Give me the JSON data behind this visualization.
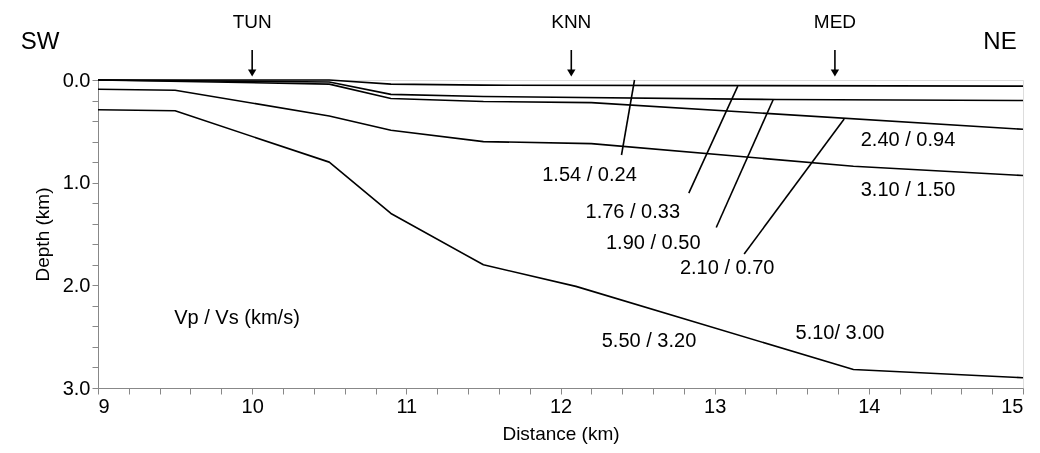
{
  "chart_data": {
    "type": "line",
    "xlabel": "Distance (km)",
    "ylabel": "Depth (km)",
    "xlim": [
      9,
      15
    ],
    "ylim": [
      3,
      0
    ],
    "xticks": [
      9,
      {
        "value": 9.2,
        "label": null
      },
      {
        "value": 9.4,
        "label": null
      },
      {
        "value": 9.6,
        "label": null
      },
      {
        "value": 9.8,
        "label": null
      },
      10,
      {
        "value": 10.2,
        "label": null
      },
      {
        "value": 10.4,
        "label": null
      },
      {
        "value": 10.6,
        "label": null
      },
      {
        "value": 10.8,
        "label": null
      },
      11,
      {
        "value": 11.2,
        "label": null
      },
      {
        "value": 11.4,
        "label": null
      },
      {
        "value": 11.6,
        "label": null
      },
      {
        "value": 11.8,
        "label": null
      },
      12,
      {
        "value": 12.2,
        "label": null
      },
      {
        "value": 12.4,
        "label": null
      },
      {
        "value": 12.6,
        "label": null
      },
      {
        "value": 12.8,
        "label": null
      },
      13,
      {
        "value": 13.2,
        "label": null
      },
      {
        "value": 13.4,
        "label": null
      },
      {
        "value": 13.6,
        "label": null
      },
      {
        "value": 13.8,
        "label": null
      },
      14,
      {
        "value": 14.2,
        "label": null
      },
      {
        "value": 14.4,
        "label": null
      },
      {
        "value": 14.6,
        "label": null
      },
      {
        "value": 14.8,
        "label": null
      },
      15
    ],
    "yticks": [
      {
        "value": 0,
        "label": "0.0"
      },
      {
        "value": 0.2,
        "label": null
      },
      {
        "value": 0.4,
        "label": null
      },
      {
        "value": 0.6,
        "label": null
      },
      {
        "value": 0.8,
        "label": null
      },
      {
        "value": 1,
        "label": "1.0"
      },
      {
        "value": 1.2,
        "label": null
      },
      {
        "value": 1.4,
        "label": null
      },
      {
        "value": 1.6,
        "label": null
      },
      {
        "value": 1.8,
        "label": null
      },
      {
        "value": 2,
        "label": "2.0"
      },
      {
        "value": 2.2,
        "label": null
      },
      {
        "value": 2.4,
        "label": null
      },
      {
        "value": 2.6,
        "label": null
      },
      {
        "value": 2.8,
        "label": null
      },
      {
        "value": 3,
        "label": "3.0"
      }
    ],
    "grid": false,
    "line_style": "solid",
    "marker": "none",
    "series": [
      {
        "color": "#000000",
        "x": [
          9,
          10.5,
          10.9,
          11.5,
          15
        ],
        "values": [
          0,
          0,
          0.04,
          0.05,
          0.06
        ]
      },
      {
        "color": "#000000",
        "x": [
          9,
          10.5,
          10.9,
          11.5,
          13.4,
          15
        ],
        "values": [
          0,
          0.02,
          0.14,
          0.16,
          0.19,
          0.2
        ]
      },
      {
        "color": "#000000",
        "x": [
          9,
          10.5,
          10.9,
          11.5,
          12.2,
          15
        ],
        "values": [
          0,
          0.04,
          0.18,
          0.21,
          0.22,
          0.48
        ]
      },
      {
        "color": "#000000",
        "x": [
          9,
          9.5,
          10.5,
          10.9,
          11.5,
          12.2,
          13.9,
          15
        ],
        "values": [
          0.09,
          0.1,
          0.35,
          0.49,
          0.6,
          0.62,
          0.84,
          0.93
        ]
      },
      {
        "color": "#000000",
        "x": [
          9,
          9.5,
          10.5,
          10.9,
          11.5,
          12.1,
          13.9,
          15
        ],
        "values": [
          0.29,
          0.3,
          0.8,
          1.3,
          1.8,
          2.01,
          2.82,
          2.9
        ]
      }
    ],
    "annotations": [
      {
        "text": "SW",
        "x": 9,
        "y": 0
      },
      {
        "text": "TUN",
        "x": 10,
        "y": 0
      },
      {
        "text": "KNN",
        "x": 12.07,
        "y": 0
      },
      {
        "text": "MED",
        "x": 13.78,
        "y": 0
      },
      {
        "text": "NE",
        "x": 15,
        "y": 0
      },
      {
        "text": "1.54 / 0.24",
        "x": 12.48,
        "y": 0
      },
      {
        "text": "1.76 / 0.33",
        "x": 13.15,
        "y": 0.06
      },
      {
        "text": "1.90 / 0.50",
        "x": 13.38,
        "y": 0.19
      },
      {
        "text": "2.10 / 0.70",
        "x": 13.84,
        "y": 0.38
      },
      "2.40 / 0.94",
      "3.10 / 1.50",
      "5.50 / 3.20",
      "5.10/ 3.00",
      "Vp / Vs (km/s)"
    ]
  }
}
